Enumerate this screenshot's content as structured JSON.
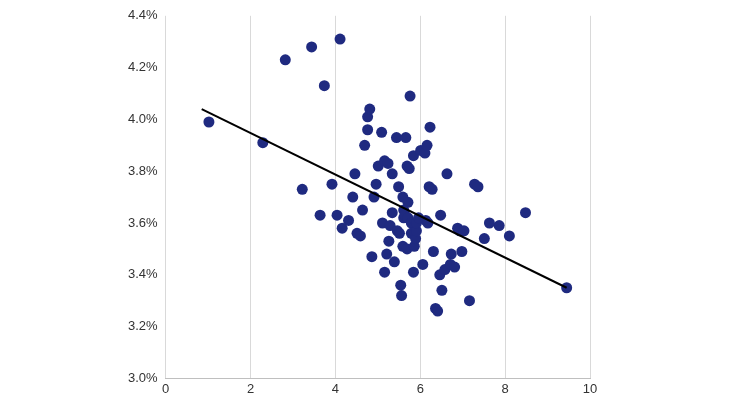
{
  "chart_data": {
    "type": "scatter",
    "series": [
      {
        "type": "scatter",
        "color": "#1f2a80",
        "marker": "circle",
        "x": [
          1.02,
          2.29,
          2.82,
          3.44,
          4.11,
          3.74,
          3.22,
          3.64,
          3.92,
          4.04,
          4.16,
          4.31,
          4.41,
          4.46,
          4.51,
          4.59,
          4.64,
          4.69,
          4.76,
          4.76,
          4.81,
          4.86,
          4.91,
          4.96,
          5.01,
          5.09,
          5.11,
          5.16,
          5.16,
          5.21,
          5.24,
          5.26,
          5.29,
          5.34,
          5.34,
          5.39,
          5.44,
          5.46,
          5.49,
          5.51,
          5.54,
          5.56,
          5.59,
          5.59,
          5.61,
          5.61,
          5.64,
          5.66,
          5.69,
          5.69,
          5.71,
          5.71,
          5.74,
          5.76,
          5.79,
          5.79,
          5.84,
          5.84,
          5.86,
          5.89,
          5.91,
          5.91,
          5.96,
          6.01,
          6.06,
          6.11,
          6.13,
          6.16,
          6.18,
          6.21,
          6.23,
          6.28,
          6.31,
          6.36,
          6.41,
          6.46,
          6.48,
          6.51,
          6.58,
          6.63,
          6.71,
          6.73,
          6.81,
          6.88,
          6.93,
          6.98,
          7.03,
          7.16,
          7.28,
          7.36,
          7.51,
          7.63,
          7.86,
          8.1,
          8.48,
          9.45
        ],
        "values": [
          3.99,
          3.91,
          4.23,
          4.28,
          4.31,
          4.13,
          3.73,
          3.63,
          3.75,
          3.63,
          3.58,
          3.61,
          3.7,
          3.79,
          3.56,
          3.55,
          3.65,
          3.9,
          4.01,
          3.96,
          4.04,
          3.47,
          3.7,
          3.75,
          3.82,
          3.95,
          3.6,
          3.84,
          3.41,
          3.48,
          3.83,
          3.53,
          3.59,
          3.79,
          3.64,
          3.45,
          3.93,
          3.57,
          3.74,
          3.56,
          3.36,
          3.32,
          3.51,
          3.7,
          3.65,
          3.62,
          3.63,
          3.93,
          3.82,
          3.5,
          3.62,
          3.68,
          3.81,
          4.09,
          3.6,
          3.56,
          3.86,
          3.41,
          3.51,
          3.54,
          3.57,
          3.6,
          3.62,
          3.88,
          3.44,
          3.87,
          3.61,
          3.9,
          3.6,
          3.74,
          3.97,
          3.73,
          3.49,
          3.27,
          3.26,
          3.4,
          3.63,
          3.34,
          3.42,
          3.79,
          3.44,
          3.48,
          3.43,
          3.58,
          3.57,
          3.49,
          3.57,
          3.3,
          3.75,
          3.74,
          3.54,
          3.6,
          3.59,
          3.55,
          3.64,
          3.35
        ]
      },
      {
        "type": "line",
        "color": "#000000",
        "line_style": "solid",
        "x": [
          0.85,
          9.45
        ],
        "values": [
          4.04,
          3.35
        ]
      }
    ],
    "xlim": [
      0,
      10
    ],
    "xticks": [
      0,
      2,
      4,
      6,
      8,
      10
    ],
    "ylim": [
      3.0,
      4.4
    ],
    "yticks": [
      {
        "value": 3.0,
        "label": "3.0%"
      },
      {
        "value": 3.2,
        "label": "3.2%"
      },
      {
        "value": 3.4,
        "label": "3.4%"
      },
      {
        "value": 3.6,
        "label": "3.6%"
      },
      {
        "value": 3.8,
        "label": "3.8%"
      },
      {
        "value": 4.0,
        "label": "4.0%"
      },
      {
        "value": 4.2,
        "label": "4.2%"
      },
      {
        "value": 4.4,
        "label": "4.4%"
      }
    ],
    "grid": "x"
  }
}
